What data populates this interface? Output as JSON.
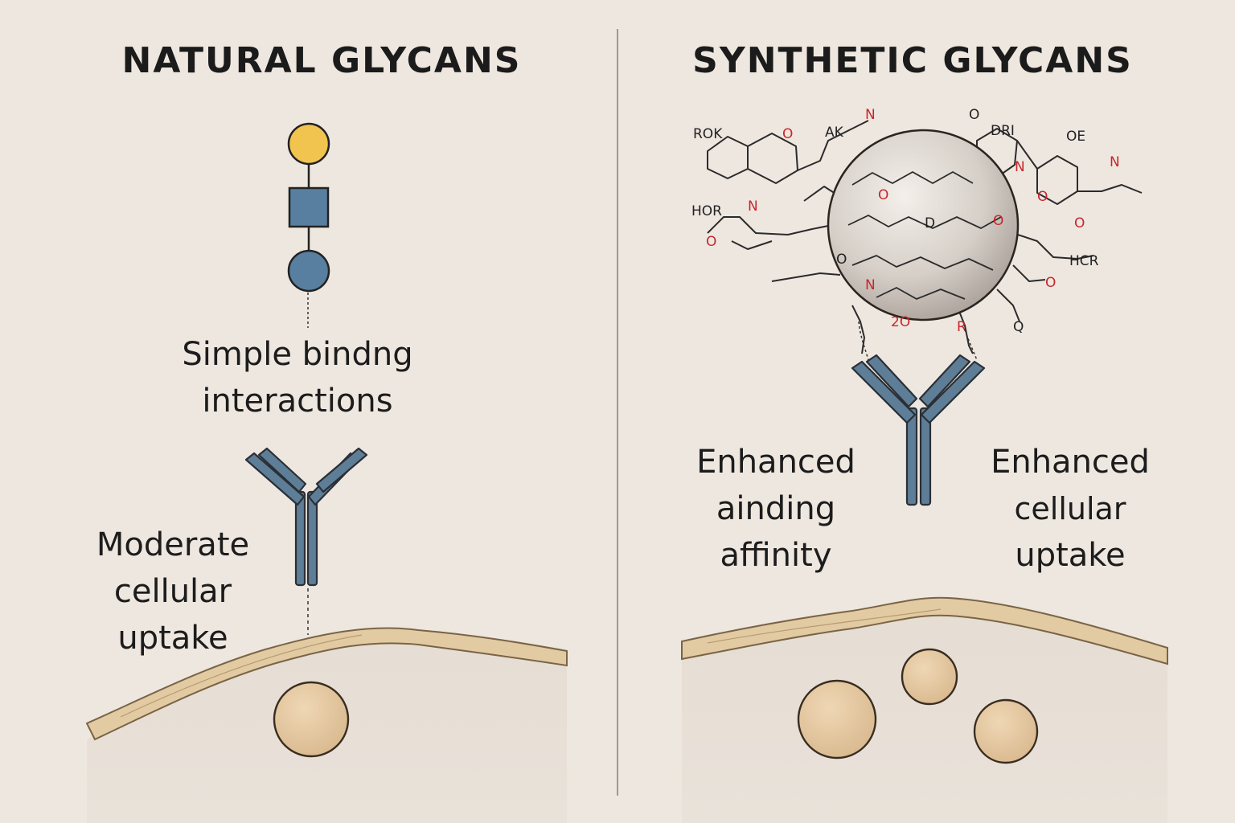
{
  "left_panel": {
    "title": "NATURAL GLYCANS",
    "binding_label": [
      "Simple bindng",
      "interactions"
    ],
    "uptake_label": [
      "Moderate",
      "cellular",
      "uptake"
    ]
  },
  "right_panel": {
    "title": "SYNTHETIC GLYCANS",
    "affinity_label": [
      "Enhanced",
      "ainding",
      "affinity"
    ],
    "uptake_label": [
      "Enhanced",
      "cellular",
      "uptake"
    ],
    "structure_labels": [
      "ROK",
      "O",
      "AK",
      "N",
      "O",
      "DRI",
      "OE",
      "HOR",
      "N",
      "O",
      "N",
      "O",
      "HCR",
      "O",
      "N",
      "O",
      "D",
      "O",
      "2O",
      "R",
      "O",
      "Q",
      "O",
      "N"
    ]
  },
  "colors": {
    "background": "#eee7e0",
    "glycan_yellow": "#f1c34f",
    "glycan_blue": "#587f9f",
    "antibody": "#5e7e98",
    "membrane": "#e2cba3",
    "vesicle": "#e6c9a2",
    "nanoparticle": "#cfc8c1",
    "heteroatom_red": "#c8262b"
  }
}
